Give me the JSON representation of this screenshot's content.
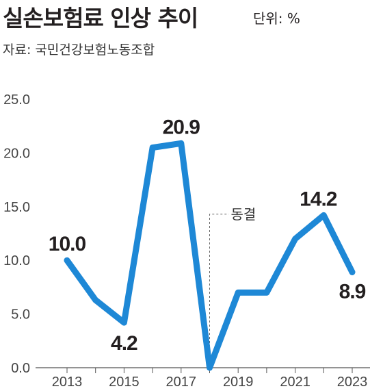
{
  "header": {
    "title": "실손보험료 인상 추이",
    "unit": "단위: %",
    "source": "자료: 국민건강보험노동조합"
  },
  "chart_data": {
    "type": "line",
    "title": "실손보험료 인상 추이",
    "unit": "%",
    "x": [
      2013,
      2014,
      2015,
      2016,
      2017,
      2018,
      2019,
      2020,
      2021,
      2022,
      2023
    ],
    "series": [
      {
        "values": [
          10.0,
          6.3,
          4.2,
          20.5,
          20.9,
          0.0,
          7.0,
          7.0,
          12.0,
          14.2,
          8.9
        ]
      }
    ],
    "x_tick_labels": [
      "2013",
      "2015",
      "2017",
      "2019",
      "2021",
      "2023"
    ],
    "y_tick_labels": [
      "0.0",
      "5.0",
      "10.0",
      "15.0",
      "20.0",
      "25.0"
    ],
    "ylim": [
      0,
      25
    ],
    "data_labels": [
      {
        "x": 2013,
        "text": "10.0"
      },
      {
        "x": 2015,
        "text": "4.2"
      },
      {
        "x": 2017,
        "text": "20.9"
      },
      {
        "x": 2022,
        "text": "14.2"
      },
      {
        "x": 2023,
        "text": "8.9"
      }
    ],
    "annotation": {
      "x": 2018,
      "text": "동결"
    },
    "line_color": "#1e88d6",
    "grid": false
  }
}
